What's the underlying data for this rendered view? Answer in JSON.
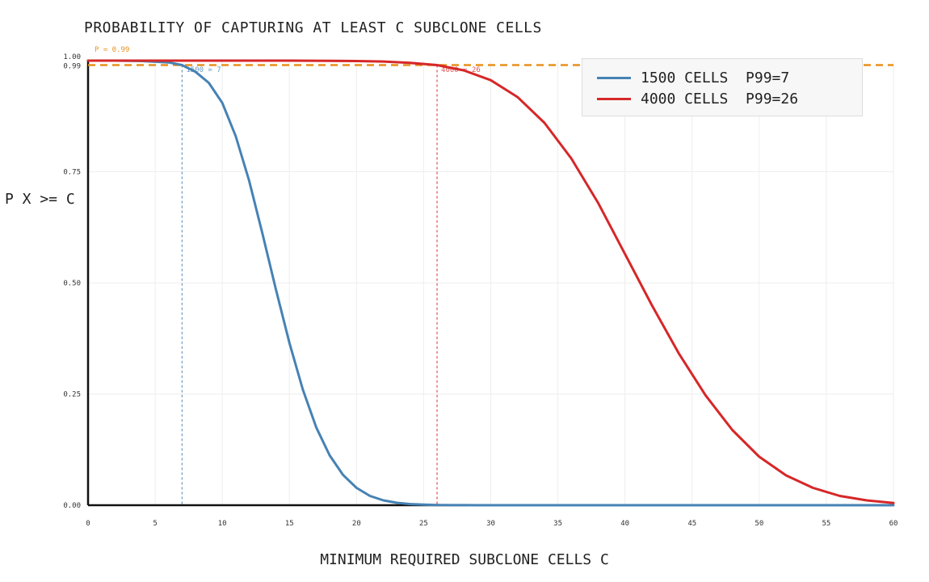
{
  "chart_data": {
    "type": "line",
    "title": "PROBABILITY OF CAPTURING AT LEAST C SUBCLONE CELLS",
    "xlabel": "MINIMUM REQUIRED SUBCLONE CELLS C",
    "ylabel": "P X >= C",
    "xlim": [
      0,
      60
    ],
    "ylim": [
      0,
      1
    ],
    "x_ticks": [
      "0",
      "5",
      "10",
      "15",
      "20",
      "25",
      "30",
      "35",
      "40",
      "45",
      "50",
      "55",
      "60"
    ],
    "y_ticks": [
      "0.00",
      "0.25",
      "0.50",
      "0.75",
      "0.99",
      "1.00"
    ],
    "threshold": {
      "value": 0.99,
      "label": "P = 0.99",
      "color": "#e8901c"
    },
    "grid": true,
    "legend_position": "top-right",
    "series": [
      {
        "name": "1500 CELLS  P99=7",
        "color": "#4682b4",
        "p99": 7,
        "vline_label": "1500 = 7",
        "x": [
          0,
          2,
          4,
          6,
          7,
          8,
          9,
          10,
          11,
          12,
          13,
          14,
          15,
          16,
          17,
          18,
          19,
          20,
          21,
          22,
          23,
          24,
          25,
          26,
          27,
          28,
          29,
          30,
          35,
          40,
          45,
          50,
          55,
          60
        ],
        "y": [
          1.0,
          1.0,
          0.999,
          0.996,
          0.99,
          0.975,
          0.95,
          0.905,
          0.83,
          0.73,
          0.61,
          0.485,
          0.365,
          0.26,
          0.175,
          0.112,
          0.068,
          0.039,
          0.021,
          0.011,
          0.0055,
          0.0026,
          0.0012,
          0.0005,
          0.0002,
          0.0001,
          0.0,
          0.0,
          0.0,
          0.0,
          0.0,
          0.0,
          0.0,
          0.0
        ]
      },
      {
        "name": "4000 CELLS  P99=26",
        "color": "#d62728",
        "p99": 26,
        "vline_label": "4000 = 26",
        "x": [
          0,
          5,
          10,
          15,
          18,
          20,
          22,
          24,
          26,
          28,
          30,
          32,
          34,
          36,
          38,
          40,
          42,
          44,
          46,
          48,
          50,
          52,
          54,
          56,
          58,
          60
        ],
        "y": [
          1.0,
          1.0,
          1.0,
          1.0,
          0.9995,
          0.999,
          0.998,
          0.995,
          0.99,
          0.978,
          0.956,
          0.918,
          0.86,
          0.78,
          0.68,
          0.565,
          0.45,
          0.342,
          0.247,
          0.169,
          0.109,
          0.067,
          0.039,
          0.021,
          0.011,
          0.005
        ]
      }
    ]
  }
}
